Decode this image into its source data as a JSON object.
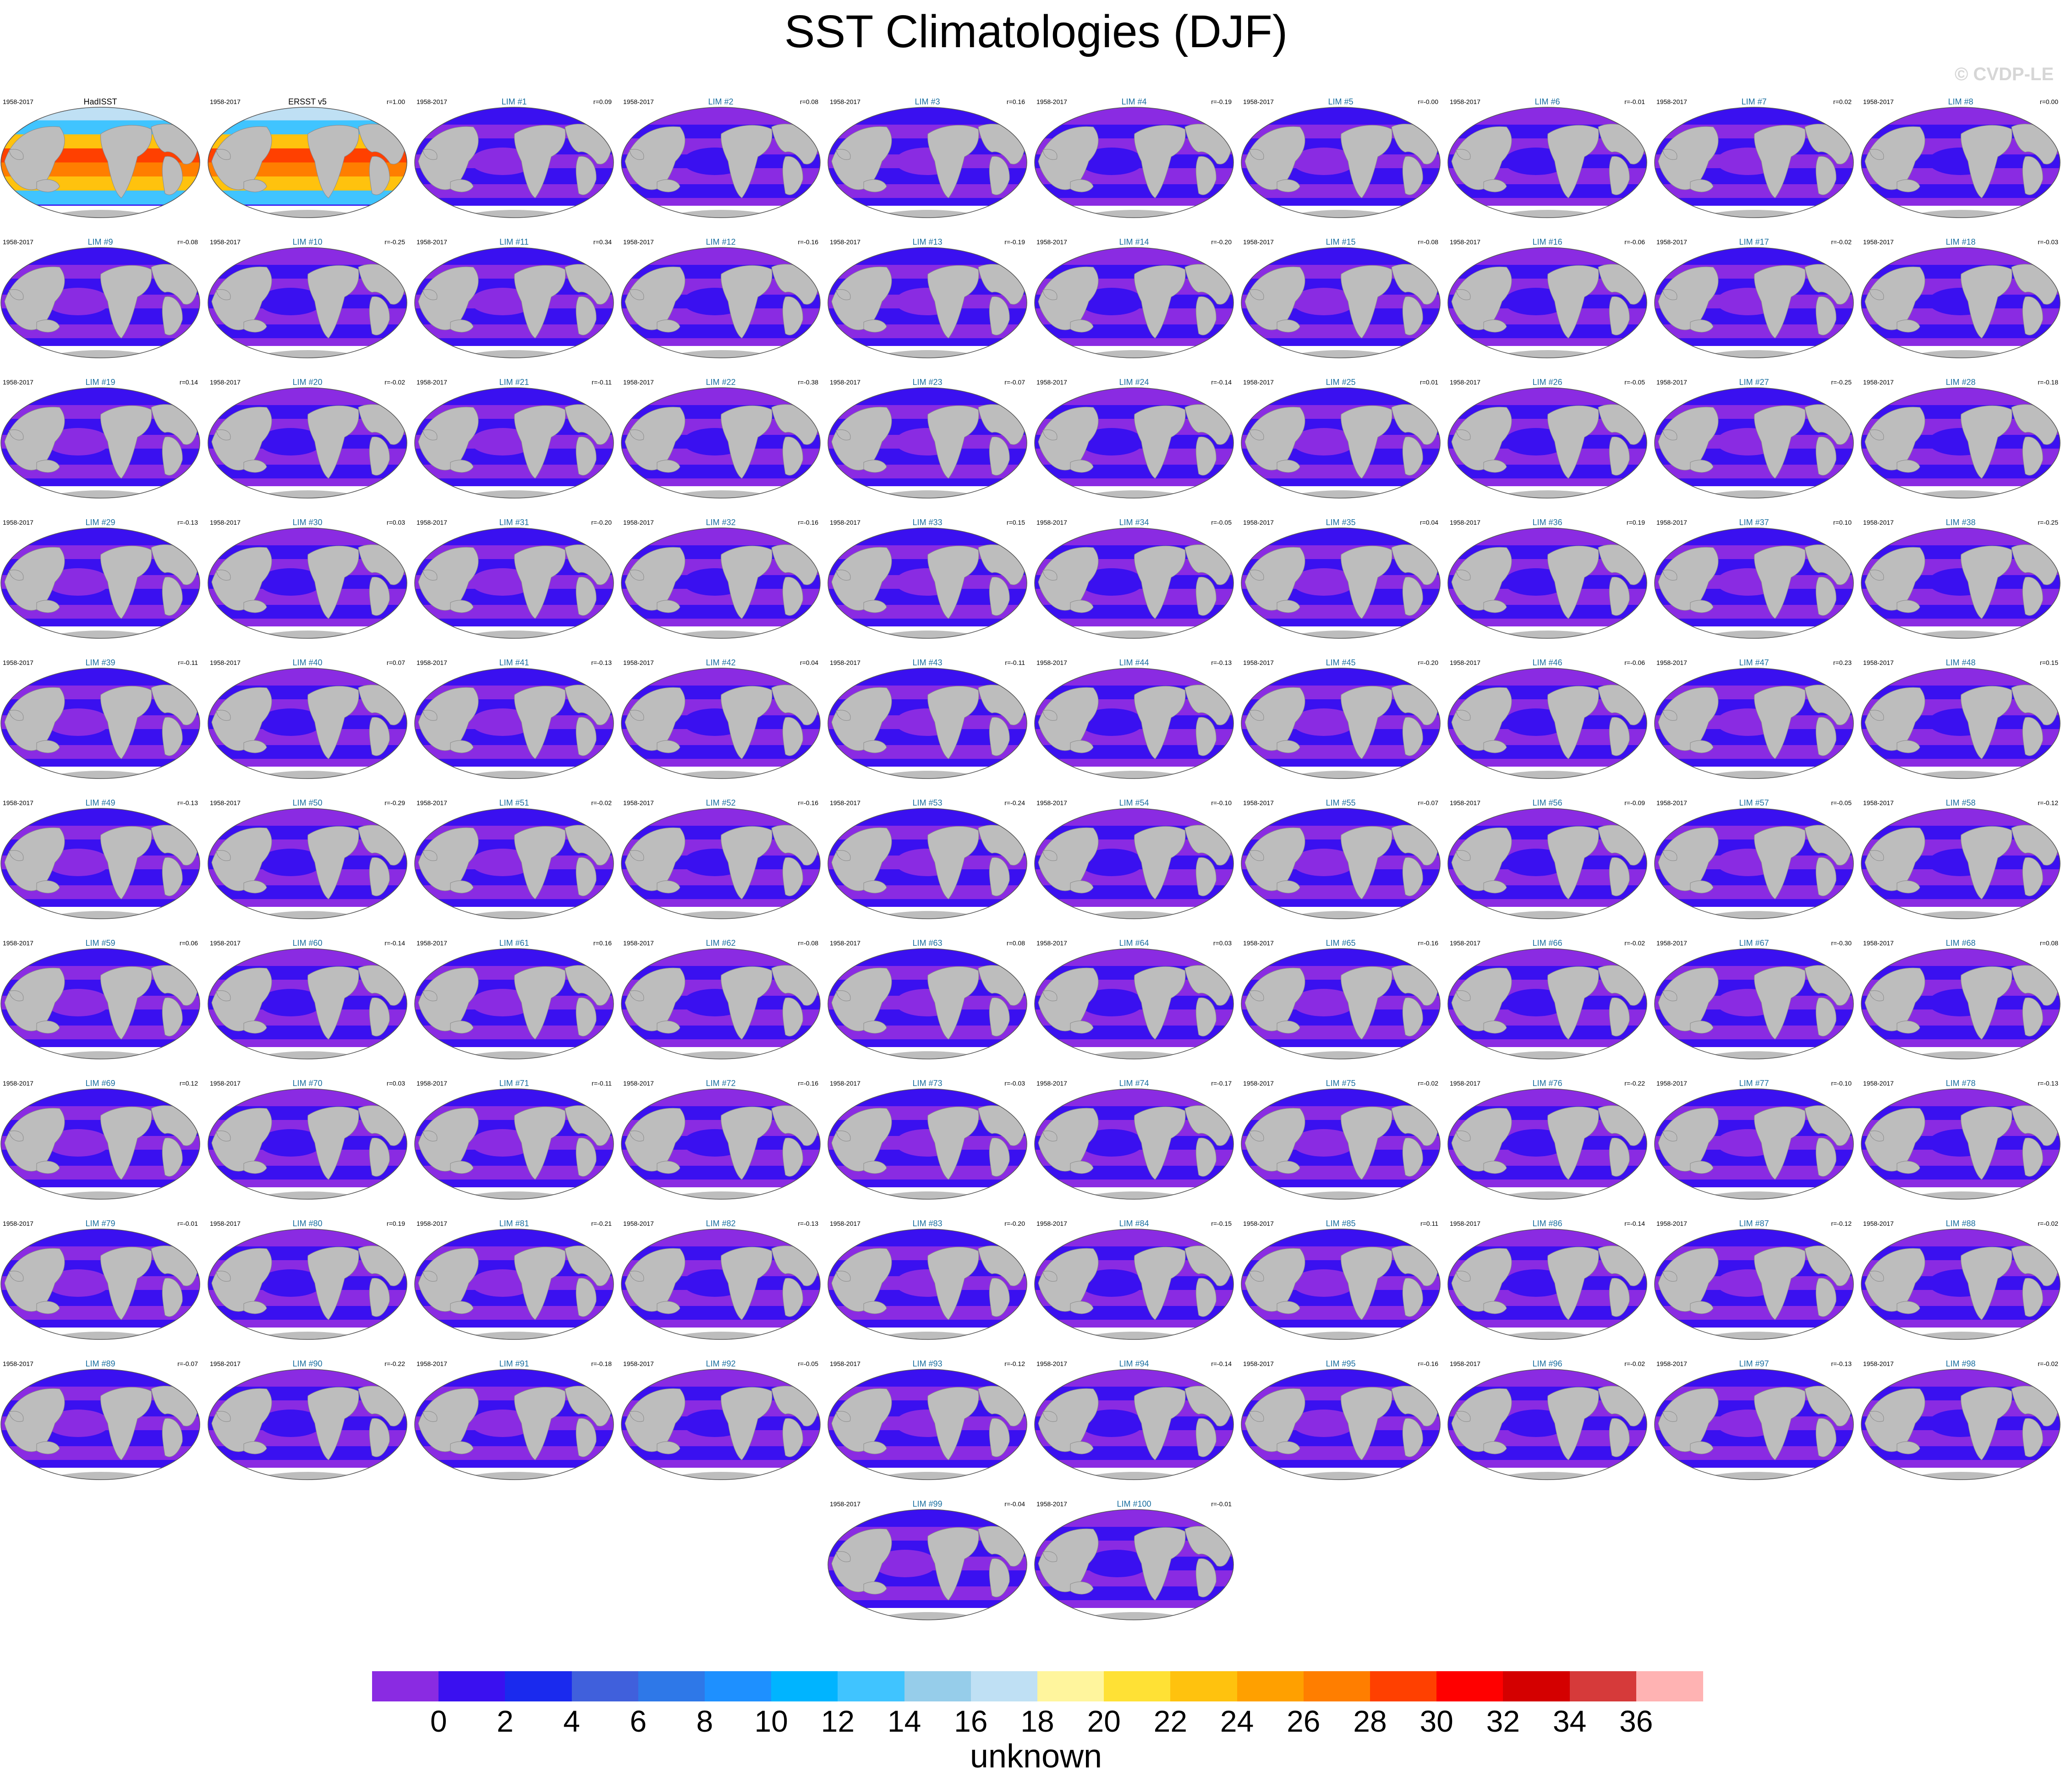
{
  "title": "SST Climatologies (DJF)",
  "copyright": "© CVDP-LE",
  "chart_data": {
    "type": "heatmap",
    "title": "SST Climatologies (DJF)",
    "period": "1958-2017",
    "panels": [
      {
        "name": "HadISST",
        "r": "r=1.00"
      },
      {
        "name": "ERSST v5",
        "r": "r=1.00"
      },
      {
        "name": "LIM #1",
        "r": "r=0.09"
      },
      {
        "name": "LIM #2",
        "r": "r=0.08"
      },
      {
        "name": "LIM #3",
        "r": "r=0.16"
      },
      {
        "name": "LIM #4",
        "r": "r=-0.19"
      },
      {
        "name": "LIM #5",
        "r": "r=-0.00"
      },
      {
        "name": "LIM #6",
        "r": "r=-0.01"
      },
      {
        "name": "LIM #7",
        "r": "r=0.02"
      },
      {
        "name": "LIM #8",
        "r": "r=0.00"
      },
      {
        "name": "LIM #9",
        "r": "r=-0.08"
      },
      {
        "name": "LIM #10",
        "r": "r=-0.25"
      },
      {
        "name": "LIM #11",
        "r": "r=0.34"
      },
      {
        "name": "LIM #12",
        "r": "r=-0.16"
      },
      {
        "name": "LIM #13",
        "r": "r=-0.19"
      },
      {
        "name": "LIM #14",
        "r": "r=-0.20"
      },
      {
        "name": "LIM #15",
        "r": "r=-0.08"
      },
      {
        "name": "LIM #16",
        "r": "r=-0.06"
      },
      {
        "name": "LIM #17",
        "r": "r=-0.02"
      },
      {
        "name": "LIM #18",
        "r": "r=-0.03"
      },
      {
        "name": "LIM #19",
        "r": "r=0.14"
      },
      {
        "name": "LIM #20",
        "r": "r=-0.02"
      },
      {
        "name": "LIM #21",
        "r": "r=-0.11"
      },
      {
        "name": "LIM #22",
        "r": "r=-0.38"
      },
      {
        "name": "LIM #23",
        "r": "r=-0.07"
      },
      {
        "name": "LIM #24",
        "r": "r=-0.14"
      },
      {
        "name": "LIM #25",
        "r": "r=0.01"
      },
      {
        "name": "LIM #26",
        "r": "r=-0.05"
      },
      {
        "name": "LIM #27",
        "r": "r=-0.25"
      },
      {
        "name": "LIM #28",
        "r": "r=-0.18"
      },
      {
        "name": "LIM #29",
        "r": "r=-0.13"
      },
      {
        "name": "LIM #30",
        "r": "r=0.03"
      },
      {
        "name": "LIM #31",
        "r": "r=-0.20"
      },
      {
        "name": "LIM #32",
        "r": "r=-0.16"
      },
      {
        "name": "LIM #33",
        "r": "r=0.15"
      },
      {
        "name": "LIM #34",
        "r": "r=-0.05"
      },
      {
        "name": "LIM #35",
        "r": "r=0.04"
      },
      {
        "name": "LIM #36",
        "r": "r=0.19"
      },
      {
        "name": "LIM #37",
        "r": "r=0.10"
      },
      {
        "name": "LIM #38",
        "r": "r=-0.25"
      },
      {
        "name": "LIM #39",
        "r": "r=-0.11"
      },
      {
        "name": "LIM #40",
        "r": "r=0.07"
      },
      {
        "name": "LIM #41",
        "r": "r=-0.13"
      },
      {
        "name": "LIM #42",
        "r": "r=0.04"
      },
      {
        "name": "LIM #43",
        "r": "r=-0.11"
      },
      {
        "name": "LIM #44",
        "r": "r=-0.13"
      },
      {
        "name": "LIM #45",
        "r": "r=-0.20"
      },
      {
        "name": "LIM #46",
        "r": "r=-0.06"
      },
      {
        "name": "LIM #47",
        "r": "r=0.23"
      },
      {
        "name": "LIM #48",
        "r": "r=0.15"
      },
      {
        "name": "LIM #49",
        "r": "r=-0.13"
      },
      {
        "name": "LIM #50",
        "r": "r=-0.29"
      },
      {
        "name": "LIM #51",
        "r": "r=-0.02"
      },
      {
        "name": "LIM #52",
        "r": "r=-0.16"
      },
      {
        "name": "LIM #53",
        "r": "r=-0.24"
      },
      {
        "name": "LIM #54",
        "r": "r=-0.10"
      },
      {
        "name": "LIM #55",
        "r": "r=-0.07"
      },
      {
        "name": "LIM #56",
        "r": "r=-0.09"
      },
      {
        "name": "LIM #57",
        "r": "r=-0.05"
      },
      {
        "name": "LIM #58",
        "r": "r=-0.12"
      },
      {
        "name": "LIM #59",
        "r": "r=0.06"
      },
      {
        "name": "LIM #60",
        "r": "r=-0.14"
      },
      {
        "name": "LIM #61",
        "r": "r=0.16"
      },
      {
        "name": "LIM #62",
        "r": "r=-0.08"
      },
      {
        "name": "LIM #63",
        "r": "r=0.08"
      },
      {
        "name": "LIM #64",
        "r": "r=0.03"
      },
      {
        "name": "LIM #65",
        "r": "r=-0.16"
      },
      {
        "name": "LIM #66",
        "r": "r=-0.02"
      },
      {
        "name": "LIM #67",
        "r": "r=-0.30"
      },
      {
        "name": "LIM #68",
        "r": "r=0.08"
      },
      {
        "name": "LIM #69",
        "r": "r=0.12"
      },
      {
        "name": "LIM #70",
        "r": "r=0.03"
      },
      {
        "name": "LIM #71",
        "r": "r=-0.11"
      },
      {
        "name": "LIM #72",
        "r": "r=-0.16"
      },
      {
        "name": "LIM #73",
        "r": "r=-0.03"
      },
      {
        "name": "LIM #74",
        "r": "r=-0.17"
      },
      {
        "name": "LIM #75",
        "r": "r=-0.02"
      },
      {
        "name": "LIM #76",
        "r": "r=-0.22"
      },
      {
        "name": "LIM #77",
        "r": "r=-0.10"
      },
      {
        "name": "LIM #78",
        "r": "r=-0.13"
      },
      {
        "name": "LIM #79",
        "r": "r=-0.01"
      },
      {
        "name": "LIM #80",
        "r": "r=0.19"
      },
      {
        "name": "LIM #81",
        "r": "r=-0.21"
      },
      {
        "name": "LIM #82",
        "r": "r=-0.13"
      },
      {
        "name": "LIM #83",
        "r": "r=-0.20"
      },
      {
        "name": "LIM #84",
        "r": "r=-0.15"
      },
      {
        "name": "LIM #85",
        "r": "r=0.11"
      },
      {
        "name": "LIM #86",
        "r": "r=-0.14"
      },
      {
        "name": "LIM #87",
        "r": "r=-0.12"
      },
      {
        "name": "LIM #88",
        "r": "r=-0.02"
      },
      {
        "name": "LIM #89",
        "r": "r=-0.07"
      },
      {
        "name": "LIM #90",
        "r": "r=-0.22"
      },
      {
        "name": "LIM #91",
        "r": "r=-0.18"
      },
      {
        "name": "LIM #92",
        "r": "r=-0.05"
      },
      {
        "name": "LIM #93",
        "r": "r=-0.12"
      },
      {
        "name": "LIM #94",
        "r": "r=-0.14"
      },
      {
        "name": "LIM #95",
        "r": "r=-0.16"
      },
      {
        "name": "LIM #96",
        "r": "r=-0.02"
      },
      {
        "name": "LIM #97",
        "r": "r=-0.13"
      },
      {
        "name": "LIM #98",
        "r": "r=-0.02"
      },
      {
        "name": "LIM #99",
        "r": "r=-0.04"
      },
      {
        "name": "LIM #100",
        "r": "r=-0.01"
      }
    ],
    "colorbar": {
      "label": "unknown",
      "ticks": [
        "0",
        "2",
        "4",
        "6",
        "8",
        "10",
        "12",
        "14",
        "16",
        "18",
        "20",
        "22",
        "24",
        "26",
        "28",
        "30",
        "32",
        "34",
        "36"
      ],
      "colors": [
        "#8a2be2",
        "#3a10f0",
        "#1a2aee",
        "#4060dc",
        "#2e78e8",
        "#1e90ff",
        "#00b4ff",
        "#40c4ff",
        "#96cdea",
        "#bfe0f4",
        "#fff59d",
        "#ffe135",
        "#ffc20e",
        "#ffa000",
        "#ff7e00",
        "#ff4000",
        "#ff0000",
        "#d40000",
        "#d63a3a",
        "#ffb3b3"
      ]
    }
  },
  "colors": {
    "land": "#bdbdbd",
    "ocean_violet": "#8a2be2",
    "ocean_blue": "#3a10f0",
    "obs_title": "#000000",
    "model_title": "#1a6fa0",
    "antarctic": "#ffffff"
  }
}
